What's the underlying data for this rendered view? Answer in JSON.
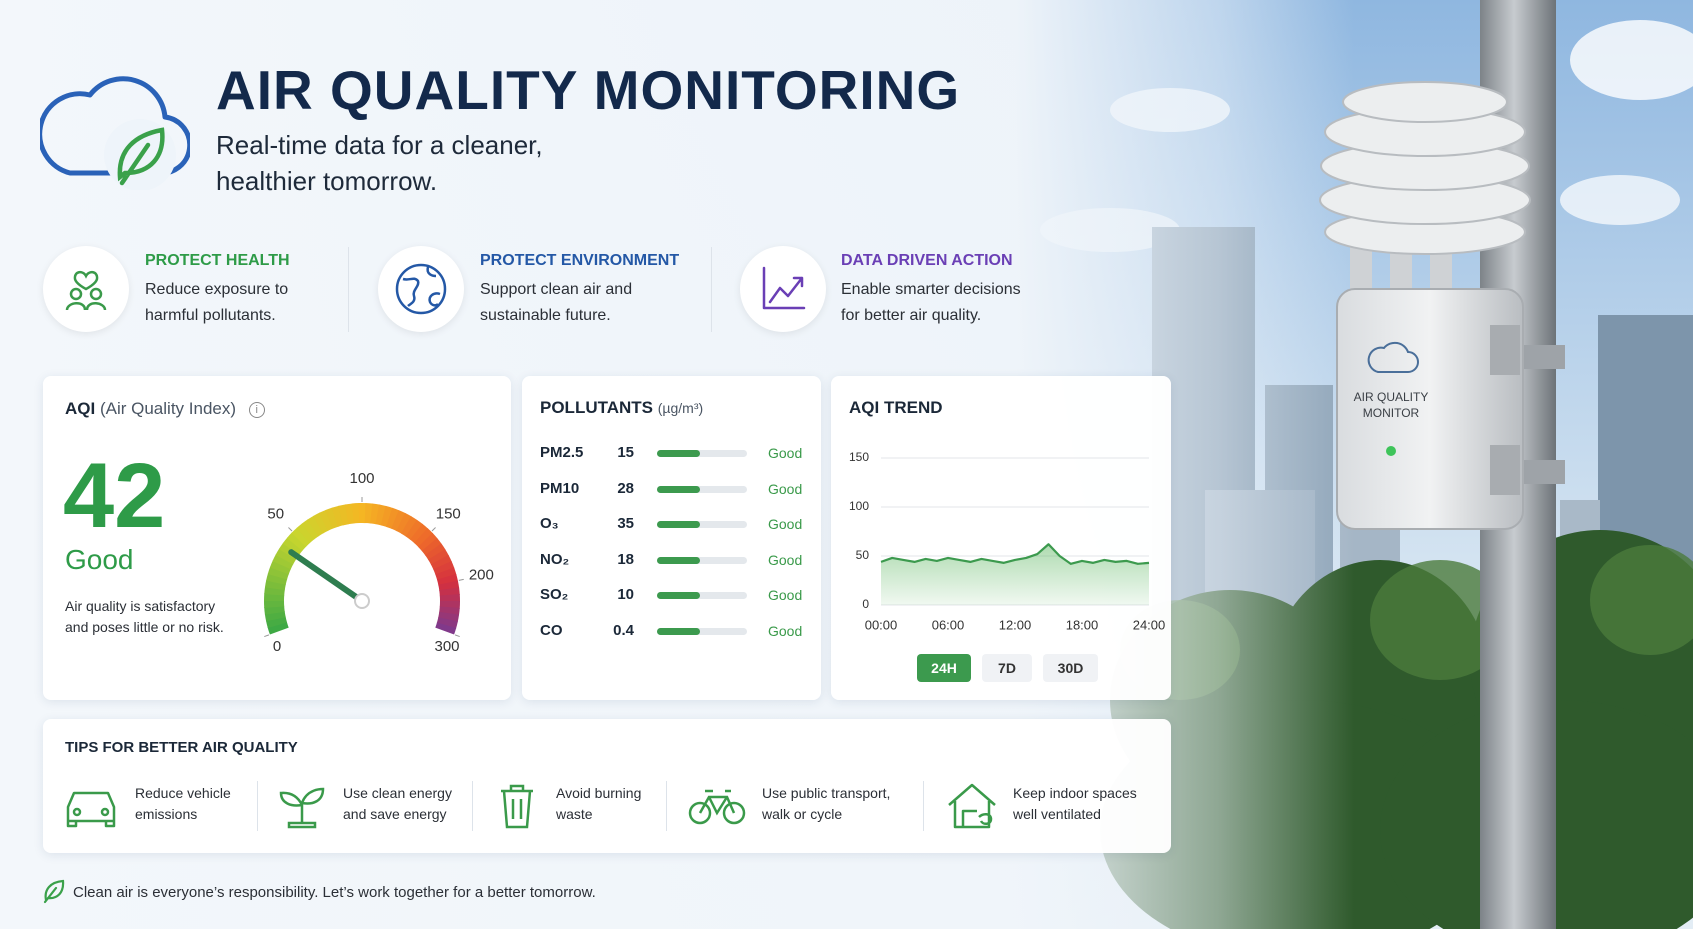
{
  "header": {
    "title": "AIR QUALITY MONITORING",
    "subtitle": [
      "Real-time data for a cleaner,",
      "healthier tomorrow."
    ]
  },
  "features": [
    {
      "title": "PROTECT HEALTH",
      "text": [
        "Reduce exposure to",
        "harmful pollutants."
      ]
    },
    {
      "title": "PROTECT ENVIRONMENT",
      "text": [
        "Support clean air and",
        "sustainable future."
      ]
    },
    {
      "title": "DATA DRIVEN ACTION",
      "text": [
        "Enable smarter decisions",
        "for better air quality."
      ]
    }
  ],
  "aqi": {
    "title": "AQI",
    "subtitle": "(Air Quality Index)",
    "value": 42,
    "status": "Good",
    "description": [
      "Air quality is satisfactory",
      "and poses little or no risk."
    ],
    "gauge_ticks": [
      0,
      50,
      100,
      150,
      200,
      300
    ]
  },
  "pollutants": {
    "title": "POLLUTANTS",
    "unit": "(µg/m³)",
    "rows": [
      {
        "name": "PM2.5",
        "value": 15,
        "status": "Good"
      },
      {
        "name": "PM10",
        "value": 28,
        "status": "Good"
      },
      {
        "name": "O₃",
        "value": 35,
        "status": "Good"
      },
      {
        "name": "NO₂",
        "value": 18,
        "status": "Good"
      },
      {
        "name": "SO₂",
        "value": 10,
        "status": "Good"
      },
      {
        "name": "CO",
        "value": 0.4,
        "status": "Good"
      }
    ]
  },
  "chart_data": {
    "type": "line",
    "title": "AQI TREND",
    "color": "#4caf50",
    "x": [
      0,
      1,
      2,
      3,
      4,
      5,
      6,
      7,
      8,
      9,
      10,
      11,
      12,
      13,
      14,
      15,
      16,
      17,
      18,
      19,
      20,
      21,
      22,
      23,
      24
    ],
    "values": [
      44,
      48,
      46,
      44,
      47,
      45,
      48,
      46,
      44,
      47,
      45,
      43,
      46,
      48,
      52,
      62,
      50,
      42,
      45,
      43,
      46,
      44,
      45,
      42,
      43
    ],
    "xlim": [
      0,
      24
    ],
    "xticks": [
      {
        "value": 0,
        "label": "00:00"
      },
      {
        "value": 6,
        "label": "06:00"
      },
      {
        "value": 12,
        "label": "12:00"
      },
      {
        "value": 18,
        "label": "18:00"
      },
      {
        "value": 24,
        "label": "24:00"
      }
    ],
    "ylim": [
      0,
      150
    ],
    "yticks": [
      0,
      50,
      100,
      150
    ],
    "grid": true
  },
  "trend_controls": [
    "24H",
    "7D",
    "30D"
  ],
  "tips": {
    "title": "TIPS FOR BETTER AIR QUALITY",
    "items": [
      [
        "Reduce vehicle",
        "emissions"
      ],
      [
        "Use clean energy",
        "and save energy"
      ],
      [
        "Avoid burning",
        "waste"
      ],
      [
        "Use public transport,",
        "walk or cycle"
      ],
      [
        "Keep indoor spaces",
        "well ventilated"
      ]
    ]
  },
  "footer": "Clean air is everyone’s responsibility. Let’s work together for a better tomorrow.",
  "photo": {
    "device_label": [
      "AIR QUALITY",
      "MONITOR"
    ]
  }
}
